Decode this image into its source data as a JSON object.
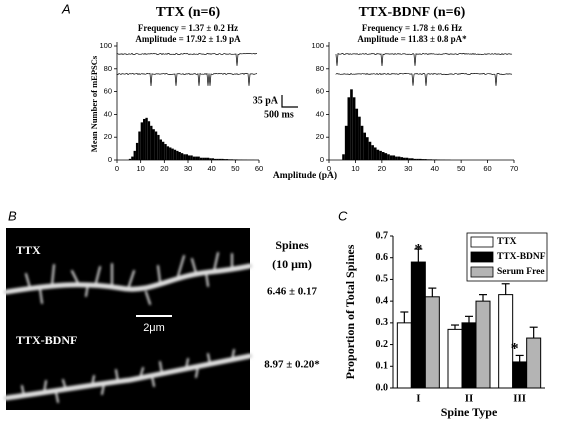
{
  "chart_data": [
    {
      "type": "histogram",
      "title": "TTX (n=6)",
      "annotations": [
        "Frequency = 1.37 ± 0.2 Hz",
        "Amplitude = 17.92 ± 1.9 pA"
      ],
      "bins": [
        5,
        6,
        7,
        8,
        9,
        10,
        11,
        12,
        13,
        14,
        15,
        16,
        17,
        18,
        19,
        20,
        21,
        22,
        23,
        24,
        25,
        26,
        27,
        28,
        29,
        30,
        31,
        32,
        33,
        34,
        35,
        36,
        37,
        38,
        39,
        40,
        41,
        42,
        43,
        44,
        45,
        46,
        47,
        48,
        49,
        50,
        51,
        52,
        53,
        54,
        55,
        56,
        57,
        58,
        59,
        60
      ],
      "values": [
        1,
        3,
        8,
        15,
        25,
        33,
        36,
        37,
        34,
        30,
        27,
        25,
        22,
        18,
        16,
        14,
        12,
        11,
        10,
        9,
        8,
        7,
        6,
        5,
        5,
        4,
        4,
        3,
        3,
        3,
        2,
        2,
        2,
        2,
        1.5,
        1.5,
        1,
        1,
        1,
        1,
        0.8,
        0.8,
        0.6,
        0.6,
        0.5,
        0.5,
        0.4,
        0.4,
        0.3,
        0.3,
        0.2,
        0.2,
        0.2,
        0.1,
        0.1
      ],
      "color": "#000000",
      "xlim": [
        0,
        60
      ],
      "xticks": [
        0,
        10,
        20,
        30,
        40,
        50,
        60
      ],
      "ylim": [
        0,
        100
      ],
      "yticks": [
        0,
        20,
        40,
        60,
        80,
        100
      ]
    },
    {
      "type": "histogram",
      "title": "TTX-BDNF (n=6)",
      "annotations": [
        "Frequency = 1.78 ± 0.6 Hz",
        "Amplitude = 11.83 ± 0.8 pA*"
      ],
      "bins": [
        5,
        6,
        7,
        8,
        9,
        10,
        11,
        12,
        13,
        14,
        15,
        16,
        17,
        18,
        19,
        20,
        21,
        22,
        23,
        24,
        25,
        26,
        27,
        28,
        29,
        30,
        31,
        32,
        33,
        34,
        35,
        36,
        37,
        38,
        39,
        40,
        41,
        42,
        43,
        44,
        45,
        46
      ],
      "values": [
        5,
        30,
        55,
        62,
        55,
        45,
        38,
        30,
        24,
        20,
        16,
        13,
        11,
        9,
        8,
        7,
        6,
        5,
        4,
        4,
        3,
        3,
        2.5,
        2,
        2,
        1.5,
        1.5,
        1,
        1,
        1,
        0.8,
        0.8,
        0.6,
        0.6,
        0.5,
        0.5,
        0.4,
        0.3,
        0.3,
        0.2,
        0.2
      ],
      "color": "#000000",
      "xlim": [
        0,
        70
      ],
      "xticks": [
        0,
        10,
        20,
        30,
        40,
        50,
        60,
        70
      ],
      "ylim": [
        0,
        100
      ],
      "yticks": [
        0,
        20,
        40,
        60,
        80,
        100
      ]
    },
    {
      "type": "bar",
      "ylabel": "Proportion of Total Spines",
      "xlabel": "Spine Type",
      "categories": [
        "I",
        "II",
        "III"
      ],
      "series": [
        {
          "name": "TTX",
          "color": "#ffffff",
          "values": [
            0.3,
            0.27,
            0.43
          ],
          "errors": [
            0.05,
            0.02,
            0.05
          ]
        },
        {
          "name": "TTX-BDNF",
          "color": "#000000",
          "values": [
            0.58,
            0.3,
            0.12
          ],
          "errors": [
            0.06,
            0.03,
            0.03
          ]
        },
        {
          "name": "Serum Free",
          "color": "#b4b4b4",
          "values": [
            0.42,
            0.4,
            0.23
          ],
          "errors": [
            0.04,
            0.03,
            0.05
          ]
        }
      ],
      "annotations": [
        "*",
        "*"
      ],
      "ylim": [
        0,
        0.7
      ],
      "yticks": [
        {
          "value": 0,
          "label": "0.0"
        },
        0.1,
        0.2,
        0.3,
        0.4,
        0.5,
        0.6,
        0.7
      ],
      "legend": "upper right"
    }
  ],
  "figure": {
    "panel_labels": [
      "A",
      "B",
      "C"
    ],
    "a_ylabel": "Mean Number of mEPSCs",
    "a_xlabel": "Amplitude (pA)",
    "scale_bar": [
      "35 pA",
      "500 ms"
    ],
    "micrograph": {
      "labels": [
        "TTX",
        "TTX-BDNF"
      ],
      "scale": "2μm",
      "spines_heading": "Spines",
      "spines_unit": "(10 μm)",
      "values": [
        "6.46 ± 0.17",
        "8.97 ± 0.20*"
      ]
    }
  }
}
